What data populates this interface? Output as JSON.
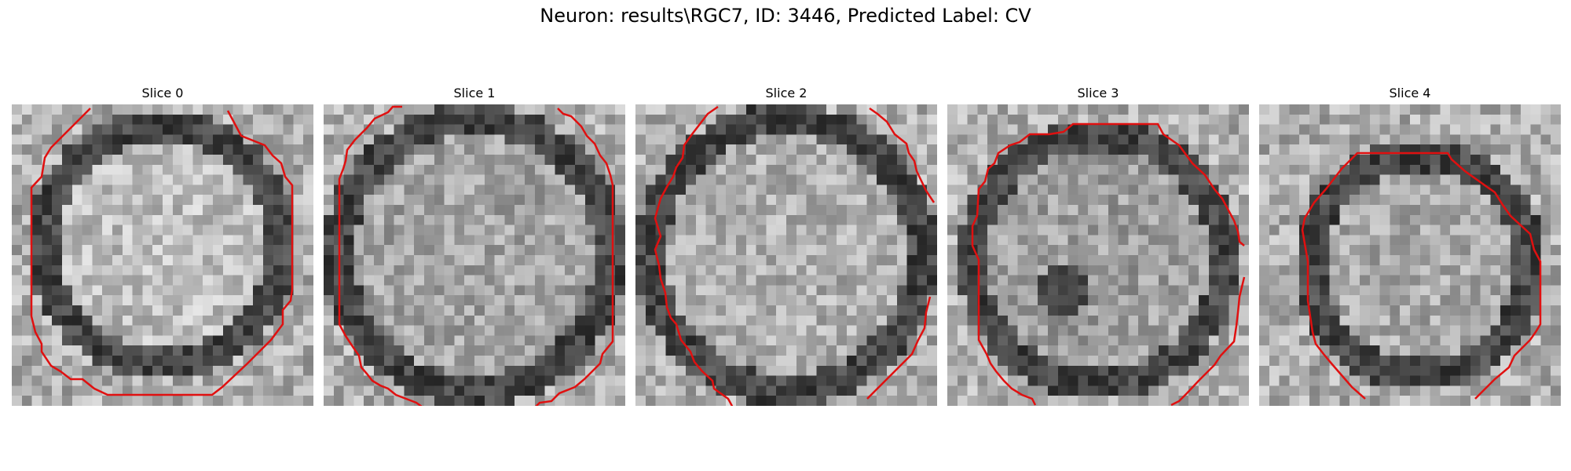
{
  "figure": {
    "title": "Neuron: results\\RGC7, ID: 3446, Predicted Label: CV"
  },
  "panels": [
    {
      "title": "Slice 0"
    },
    {
      "title": "Slice 1"
    },
    {
      "title": "Slice 2"
    },
    {
      "title": "Slice 3"
    },
    {
      "title": "Slice 4"
    }
  ],
  "contour_color": "#e01010"
}
